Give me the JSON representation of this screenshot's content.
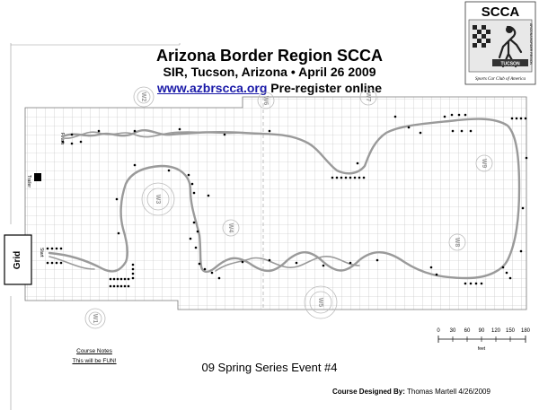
{
  "header": {
    "line1": "Arizona Border Region SCCA",
    "line2": "SIR, Tucson, Arizona • April 26 2009",
    "url": "www.azbrscca.org",
    "preregister": " Pre-register online"
  },
  "logo": {
    "text": "SCCA",
    "sub": "TUCSON",
    "tagline": "Sports Car Club of America",
    "side_text": "ARIZONA BORDER REGION"
  },
  "map": {
    "grid_label": "Grid",
    "trailer_label": "Trailer",
    "start_label": "Start",
    "finish_label": "Finish",
    "workers": [
      "W1",
      "W2",
      "W3",
      "W4",
      "W5",
      "W6",
      "W7",
      "W8",
      "W9"
    ],
    "scale_ticks": [
      "0",
      "30",
      "60",
      "90",
      "120",
      "150",
      "180"
    ],
    "scale_unit": "feet"
  },
  "event_name": "09 Spring Series Event #4",
  "notes": {
    "title": "Course Notes",
    "line": "This will be FUN!"
  },
  "credit": {
    "label": "Course Designed By:",
    "value": "Thomas Martell 4/26/2009"
  },
  "colors": {
    "course_line": "#9a9a9a",
    "grid_line": "#bbbbbb",
    "url": "#1a1aa8"
  }
}
